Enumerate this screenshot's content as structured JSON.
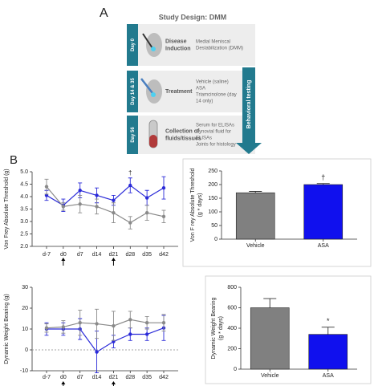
{
  "diagram": {
    "label": "A",
    "title": "Study Design: DMM",
    "arrow_label": "Behavioral testing",
    "rows": [
      {
        "day": "Day 0",
        "title": [
          "Disease",
          "Induction"
        ],
        "details": [
          "Medial Meniscal",
          "Destabilization (DMM)"
        ]
      },
      {
        "day": "Day 14 & 35",
        "title": [
          "Treatment"
        ],
        "details": [
          "Vehicle (saline)",
          "ASA",
          "Triamcinolone (day",
          "14 only)"
        ]
      },
      {
        "day": "Day 56",
        "title": [
          "Collection of",
          "fluids/tissues"
        ],
        "details": [
          "Serum for ELISAs",
          "Synovial fluid for",
          "ELISAs",
          "Joints for histology"
        ]
      }
    ]
  },
  "panel_label": "B",
  "chart_data": [
    {
      "type": "line",
      "ylabel": [
        "Von Frey Absolute Threshold (g)"
      ],
      "categories": [
        "d-7",
        "d0",
        "d7",
        "d14",
        "d21",
        "d28",
        "d35",
        "d42"
      ],
      "series": [
        {
          "color": "#2a2ad8",
          "values": [
            4.05,
            3.65,
            4.25,
            4.05,
            3.85,
            4.45,
            3.95,
            4.35
          ],
          "errors": [
            0.2,
            0.25,
            0.3,
            0.3,
            0.2,
            0.3,
            0.3,
            0.45
          ]
        },
        {
          "color": "#8a8a8a",
          "values": [
            4.4,
            3.6,
            3.7,
            3.6,
            3.35,
            2.95,
            3.35,
            3.2
          ],
          "errors": [
            0.3,
            0.15,
            0.35,
            0.3,
            0.4,
            0.25,
            0.3,
            0.25
          ]
        }
      ],
      "annotations": [
        "†"
      ],
      "ylim": [
        2,
        5
      ],
      "yticks": [
        {
          "value": 2,
          "label": "2.0"
        },
        {
          "value": 2.5,
          "label": "2.5"
        },
        {
          "value": 3,
          "label": "3.0"
        },
        {
          "value": 3.5,
          "label": "3.5"
        },
        {
          "value": 4,
          "label": "4.0"
        },
        {
          "value": 4.5,
          "label": "4.5"
        },
        {
          "value": 5,
          "label": "5.0"
        }
      ]
    },
    {
      "type": "bar",
      "ylabel": [
        "Von F rey Absolute Threshold",
        "(g * days)"
      ],
      "categories": [
        "Vehicle",
        "ASA"
      ],
      "values": [
        170,
        200
      ],
      "errors": [
        5,
        4
      ],
      "colors": [
        "#808080",
        "#1010ee"
      ],
      "annotations": [
        "†"
      ],
      "ylim": [
        0,
        250
      ],
      "yticks": [
        0,
        50,
        100,
        150,
        200,
        250
      ]
    },
    {
      "type": "line",
      "ylabel": [
        "Dynamic Weight Bearing (g)"
      ],
      "categories": [
        "d-7",
        "d0",
        "d7",
        "d14",
        "d21",
        "d28",
        "d35",
        "d42"
      ],
      "series": [
        {
          "color": "#2a2ad8",
          "values": [
            10,
            10,
            10,
            -1,
            4,
            7.5,
            7.5,
            10.5
          ],
          "errors": [
            3,
            3,
            5,
            10,
            3,
            3,
            3,
            6
          ]
        },
        {
          "color": "#8a8a8a",
          "values": [
            10.5,
            11,
            13,
            12.5,
            11.5,
            14.5,
            13,
            13
          ],
          "errors": [
            2,
            3,
            6,
            7,
            7,
            4,
            3,
            4
          ]
        }
      ],
      "ylim": [
        -10,
        30
      ],
      "yticks": [
        -10,
        0,
        10,
        20,
        30
      ]
    },
    {
      "type": "bar",
      "ylabel": [
        "Dynamic Weight Bearing",
        "(g * days)"
      ],
      "categories": [
        "Vehicle",
        "ASA"
      ],
      "values": [
        600,
        340
      ],
      "errors": [
        90,
        70
      ],
      "colors": [
        "#808080",
        "#1010ee"
      ],
      "annotations": [
        "*"
      ],
      "ylim": [
        0,
        800
      ],
      "yticks": [
        0,
        200,
        400,
        600,
        800
      ]
    }
  ]
}
